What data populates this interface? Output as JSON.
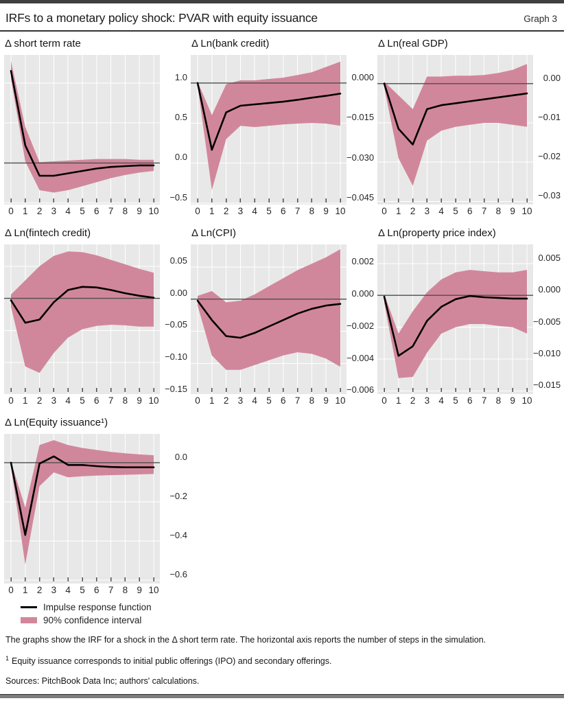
{
  "header": {
    "title": "IRFs to a monetary policy shock: PVAR with equity issuance",
    "graph_label": "Graph 3"
  },
  "legend": {
    "line_label": "Impulse response function",
    "band_label": "90% confidence interval"
  },
  "footnotes": {
    "main": "The graphs show the IRF for a shock in the Δ short term rate. The horizontal axis reports the number of steps in the simulation.",
    "note1_sup": "1",
    "note1_text": "Equity issuance corresponds to initial public offerings (IPO) and secondary offerings.",
    "sources": "Sources: PitchBook Data Inc; authors' calculations."
  },
  "colors": {
    "band": "#d1879b",
    "irf_line": "#000000",
    "plot_bg": "#e8e8e8",
    "grid": "#ffffff",
    "zero_line": "#4d4d4d"
  },
  "chart_data": [
    {
      "type": "line",
      "title": "Δ short term rate",
      "x": [
        0,
        1,
        2,
        3,
        4,
        5,
        6,
        7,
        8,
        9,
        10
      ],
      "ylim": [
        -0.52,
        1.35
      ],
      "yticks": {
        "values": [
          1.0,
          0.5,
          0.0,
          -0.5
        ],
        "labels": [
          "1.0",
          "0.5",
          "0.0",
          "−0.5"
        ]
      },
      "series": [
        {
          "name": "Impulse response function",
          "values": [
            1.15,
            0.22,
            -0.16,
            -0.16,
            -0.13,
            -0.1,
            -0.07,
            -0.05,
            -0.04,
            -0.03,
            -0.03
          ]
        },
        {
          "name": "90% CI lower",
          "values": [
            1.05,
            0.02,
            -0.34,
            -0.37,
            -0.34,
            -0.29,
            -0.24,
            -0.19,
            -0.15,
            -0.12,
            -0.1
          ]
        },
        {
          "name": "90% CI upper",
          "values": [
            1.27,
            0.45,
            0.01,
            0.02,
            0.03,
            0.04,
            0.05,
            0.05,
            0.05,
            0.04,
            0.04
          ]
        }
      ]
    },
    {
      "type": "line",
      "title": "Δ Ln(bank credit)",
      "x": [
        0,
        1,
        2,
        3,
        4,
        5,
        6,
        7,
        8,
        9,
        10
      ],
      "ylim": [
        -0.0455,
        0.0105
      ],
      "yticks": {
        "values": [
          0.0,
          -0.015,
          -0.03,
          -0.045
        ],
        "labels": [
          "0.000",
          "−0.015",
          "−0.030",
          "−0.045"
        ]
      },
      "series": [
        {
          "name": "Impulse response function",
          "values": [
            0.0,
            -0.025,
            -0.011,
            -0.0085,
            -0.008,
            -0.0075,
            -0.007,
            -0.0063,
            -0.0055,
            -0.0048,
            -0.004
          ]
        },
        {
          "name": "90% CI lower",
          "values": [
            -0.001,
            -0.04,
            -0.021,
            -0.016,
            -0.0165,
            -0.016,
            -0.0155,
            -0.0152,
            -0.015,
            -0.0152,
            -0.016
          ]
        },
        {
          "name": "90% CI upper",
          "values": [
            0.0005,
            -0.012,
            -0.0005,
            0.001,
            0.001,
            0.0015,
            0.002,
            0.003,
            0.004,
            0.006,
            0.008
          ]
        }
      ]
    },
    {
      "type": "line",
      "title": "Δ Ln(real GDP)",
      "x": [
        0,
        1,
        2,
        3,
        4,
        5,
        6,
        7,
        8,
        9,
        10
      ],
      "ylim": [
        -0.0308,
        0.0073
      ],
      "yticks": {
        "values": [
          0.0,
          -0.01,
          -0.02,
          -0.03
        ],
        "labels": [
          "0.00",
          "−0.01",
          "−0.02",
          "−0.03"
        ]
      },
      "series": [
        {
          "name": "Impulse response function",
          "values": [
            0.0,
            -0.0115,
            -0.0155,
            -0.0065,
            -0.0055,
            -0.005,
            -0.0045,
            -0.004,
            -0.0035,
            -0.003,
            -0.0025
          ]
        },
        {
          "name": "90% CI lower",
          "values": [
            -0.001,
            -0.019,
            -0.026,
            -0.0145,
            -0.012,
            -0.011,
            -0.0105,
            -0.01,
            -0.01,
            -0.0105,
            -0.011
          ]
        },
        {
          "name": "90% CI upper",
          "values": [
            0.0005,
            -0.003,
            -0.0065,
            0.0018,
            0.0018,
            0.002,
            0.002,
            0.0022,
            0.0027,
            0.0035,
            0.005
          ]
        }
      ]
    },
    {
      "type": "line",
      "title": "Δ Ln(fintech credit)",
      "x": [
        0,
        1,
        2,
        3,
        4,
        5,
        6,
        7,
        8,
        9,
        10
      ],
      "ylim": [
        -0.149,
        0.084
      ],
      "yticks": {
        "values": [
          0.05,
          0.0,
          -0.05,
          -0.1,
          -0.15
        ],
        "labels": [
          "0.05",
          "0.00",
          "−0.05",
          "−0.10",
          "−0.15"
        ]
      },
      "series": [
        {
          "name": "Impulse response function",
          "values": [
            -0.003,
            -0.038,
            -0.033,
            -0.006,
            0.013,
            0.018,
            0.017,
            0.013,
            0.008,
            0.004,
            0.001
          ]
        },
        {
          "name": "90% CI lower",
          "values": [
            -0.013,
            -0.106,
            -0.116,
            -0.085,
            -0.061,
            -0.048,
            -0.043,
            -0.041,
            -0.042,
            -0.044,
            -0.044
          ]
        },
        {
          "name": "90% CI upper",
          "values": [
            0.006,
            0.028,
            0.05,
            0.066,
            0.073,
            0.072,
            0.067,
            0.06,
            0.053,
            0.046,
            0.04
          ]
        }
      ]
    },
    {
      "type": "line",
      "title": "Δ Ln(CPI)",
      "x": [
        0,
        1,
        2,
        3,
        4,
        5,
        6,
        7,
        8,
        9,
        10
      ],
      "ylim": [
        -0.0059,
        0.0034
      ],
      "yticks": {
        "values": [
          0.002,
          0.0,
          -0.002,
          -0.004,
          -0.006
        ],
        "labels": [
          "0.002",
          "0.000",
          "−0.002",
          "−0.004",
          "−0.006"
        ]
      },
      "series": [
        {
          "name": "Impulse response function",
          "values": [
            -0.0001,
            -0.0013,
            -0.0023,
            -0.0024,
            -0.0021,
            -0.0017,
            -0.0013,
            -0.0009,
            -0.0006,
            -0.0004,
            -0.0003
          ]
        },
        {
          "name": "90% CI lower",
          "values": [
            -0.0004,
            -0.0035,
            -0.0044,
            -0.0044,
            -0.0041,
            -0.0038,
            -0.0035,
            -0.0033,
            -0.0034,
            -0.0037,
            -0.0042
          ]
        },
        {
          "name": "90% CI upper",
          "values": [
            0.0002,
            0.0005,
            -0.0002,
            -0.0001,
            0.0003,
            0.0008,
            0.0013,
            0.0018,
            0.0022,
            0.0026,
            0.0031
          ]
        }
      ]
    },
    {
      "type": "line",
      "title": "Δ Ln(property price index)",
      "x": [
        0,
        1,
        2,
        3,
        4,
        5,
        6,
        7,
        8,
        9,
        10
      ],
      "ylim": [
        -0.0155,
        0.008
      ],
      "yticks": {
        "values": [
          0.005,
          0.0,
          -0.005,
          -0.01,
          -0.015
        ],
        "labels": [
          "0.005",
          "0.000",
          "−0.005",
          "−0.010",
          "−0.015"
        ]
      },
      "series": [
        {
          "name": "Impulse response function",
          "values": [
            -0.0002,
            -0.0095,
            -0.008,
            -0.004,
            -0.0018,
            -0.0006,
            -0.0001,
            -0.0003,
            -0.0004,
            -0.0005,
            -0.0005
          ]
        },
        {
          "name": "90% CI lower",
          "values": [
            -0.0012,
            -0.013,
            -0.0128,
            -0.009,
            -0.006,
            -0.005,
            -0.0045,
            -0.0045,
            -0.0048,
            -0.005,
            -0.006
          ]
        },
        {
          "name": "90% CI upper",
          "values": [
            0.0002,
            -0.006,
            -0.0025,
            0.0005,
            0.0025,
            0.0036,
            0.004,
            0.0038,
            0.0036,
            0.0036,
            0.004
          ]
        }
      ]
    },
    {
      "type": "line",
      "title": "Δ Ln(Equity issuance¹)",
      "x": [
        0,
        1,
        2,
        3,
        4,
        5,
        6,
        7,
        8,
        9,
        10
      ],
      "ylim": [
        -0.618,
        0.147
      ],
      "yticks": {
        "values": [
          0.0,
          -0.2,
          -0.4,
          -0.6
        ],
        "labels": [
          "0.0",
          "−0.2",
          "−0.4",
          "−0.6"
        ]
      },
      "series": [
        {
          "name": "Impulse response function",
          "values": [
            0.0,
            -0.37,
            -0.005,
            0.032,
            -0.012,
            -0.012,
            -0.018,
            -0.022,
            -0.024,
            -0.024,
            -0.024
          ]
        },
        {
          "name": "90% CI lower",
          "values": [
            -0.02,
            -0.52,
            -0.12,
            -0.05,
            -0.075,
            -0.07,
            -0.066,
            -0.064,
            -0.062,
            -0.06,
            -0.058
          ]
        },
        {
          "name": "90% CI upper",
          "values": [
            0.005,
            -0.23,
            0.09,
            0.115,
            0.09,
            0.075,
            0.065,
            0.055,
            0.048,
            0.042,
            0.038
          ]
        }
      ]
    }
  ]
}
